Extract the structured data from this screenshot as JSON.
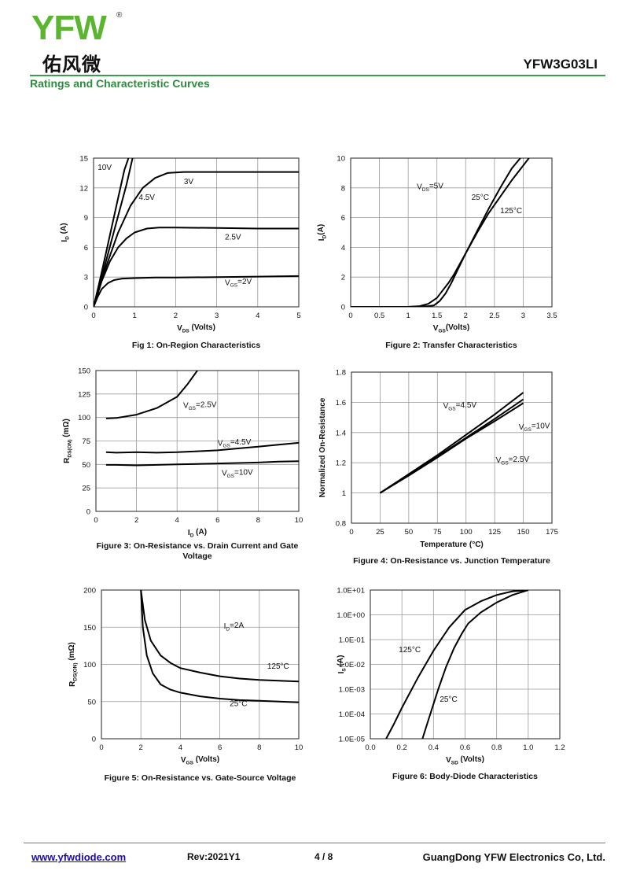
{
  "header": {
    "logo_text": "YFW",
    "logo_reg": "®",
    "logo_cn": "佑风微",
    "part_number": "YFW3G03LI",
    "section_title": "Ratings and Characteristic Curves"
  },
  "footer": {
    "website": "www.yfwdiode.com",
    "revision": "Rev:2021Y1",
    "page": "4 / 8",
    "company": "GuangDong YFW Electronics Co, Ltd."
  },
  "chart_data": [
    {
      "id": "fig1",
      "type": "line",
      "title": "Fig 1: On-Region Characteristics",
      "xlabel": "VDS (Volts)",
      "ylabel": "ID (A)",
      "xlim": [
        0,
        5
      ],
      "ylim": [
        0,
        15
      ],
      "xticks": [
        0,
        1,
        2,
        3,
        4,
        5
      ],
      "yticks": [
        0,
        3,
        6,
        9,
        12,
        15
      ],
      "xtick_labels": [
        "0",
        "1",
        "2",
        "3",
        "4",
        "5"
      ],
      "ytick_labels": [
        "0",
        "3",
        "6",
        "9",
        "12",
        "15"
      ],
      "series": [
        {
          "name": "10V",
          "x": [
            0,
            0.15,
            0.3,
            0.45,
            0.6,
            0.75,
            0.85
          ],
          "y": [
            0,
            2.6,
            5.4,
            8.2,
            11.0,
            13.8,
            15
          ]
        },
        {
          "name": "4.5V",
          "x": [
            0,
            0.2,
            0.4,
            0.6,
            0.8,
            0.95
          ],
          "y": [
            0,
            3.0,
            6.1,
            9.2,
            12.3,
            15
          ]
        },
        {
          "name": "3V",
          "x": [
            0,
            0.3,
            0.6,
            0.9,
            1.2,
            1.5,
            1.8,
            2.2,
            3,
            4,
            5
          ],
          "y": [
            0,
            4.0,
            7.5,
            10.2,
            12.0,
            13.0,
            13.5,
            13.6,
            13.6,
            13.6,
            13.6
          ]
        },
        {
          "name": "2.5V",
          "x": [
            0,
            0.2,
            0.4,
            0.6,
            0.8,
            1.0,
            1.3,
            1.6,
            2,
            3,
            4,
            5
          ],
          "y": [
            0,
            2.6,
            4.6,
            6.0,
            6.9,
            7.5,
            7.9,
            8.0,
            8.0,
            7.95,
            7.9,
            7.9
          ]
        },
        {
          "name": "VGS=2V",
          "x": [
            0,
            0.1,
            0.2,
            0.35,
            0.5,
            0.7,
            1.0,
            1.5,
            2,
            3,
            4,
            5
          ],
          "y": [
            0,
            1.0,
            1.8,
            2.4,
            2.7,
            2.85,
            2.9,
            2.95,
            2.95,
            3.0,
            3.05,
            3.1
          ]
        }
      ],
      "labels": [
        {
          "text": "10V",
          "x": 0.1,
          "y": 13.8
        },
        {
          "text": "4.5V",
          "x": 1.1,
          "y": 10.8
        },
        {
          "text": "3V",
          "x": 2.2,
          "y": 12.4
        },
        {
          "text": "2.5V",
          "x": 3.2,
          "y": 6.8
        },
        {
          "text": "VGS=2V",
          "x": 3.2,
          "y": 2.2
        }
      ]
    },
    {
      "id": "fig2",
      "type": "line",
      "title": "Figure 2: Transfer Characteristics",
      "xlabel": "VGS(Volts)",
      "ylabel": "ID(A)",
      "xlim": [
        0,
        3.5
      ],
      "ylim": [
        0,
        10
      ],
      "xticks": [
        0,
        0.5,
        1,
        1.5,
        2,
        2.5,
        3,
        3.5
      ],
      "yticks": [
        0,
        2,
        4,
        6,
        8,
        10
      ],
      "xtick_labels": [
        "0",
        "0.5",
        "1",
        "1.5",
        "2",
        "2.5",
        "3",
        "3.5"
      ],
      "ytick_labels": [
        "0",
        "2",
        "4",
        "6",
        "8",
        "10"
      ],
      "series": [
        {
          "name": "25°C",
          "x": [
            0,
            1.0,
            1.2,
            1.35,
            1.5,
            1.6,
            1.7,
            1.8,
            2.0,
            2.2,
            2.4,
            2.6,
            2.8,
            2.95
          ],
          "y": [
            0,
            0,
            0.05,
            0.2,
            0.6,
            1.1,
            1.6,
            2.2,
            3.6,
            5.1,
            6.6,
            8.0,
            9.3,
            10
          ]
        },
        {
          "name": "125°C",
          "x": [
            0,
            1.0,
            1.35,
            1.45,
            1.55,
            1.65,
            1.75,
            1.85,
            2.0,
            2.2,
            2.4,
            2.6,
            2.8,
            3.0,
            3.1
          ],
          "y": [
            0,
            0,
            0.05,
            0.1,
            0.4,
            0.9,
            1.6,
            2.4,
            3.6,
            5.0,
            6.3,
            7.4,
            8.5,
            9.5,
            10
          ]
        }
      ],
      "labels": [
        {
          "text": "VDS=5V",
          "x": 1.15,
          "y": 7.9
        },
        {
          "text": "25°C",
          "x": 2.1,
          "y": 7.2
        },
        {
          "text": "125°C",
          "x": 2.6,
          "y": 6.3
        }
      ]
    },
    {
      "id": "fig3",
      "type": "line",
      "title": "Figure 3: On-Resistance vs. Drain Current and Gate Voltage",
      "xlabel": "ID (A)",
      "ylabel": "RDS(ON) (mΩ)",
      "xlim": [
        0,
        10
      ],
      "ylim": [
        0,
        150
      ],
      "xticks": [
        0,
        2,
        4,
        6,
        8,
        10
      ],
      "yticks": [
        0,
        25,
        50,
        75,
        100,
        125,
        150
      ],
      "xtick_labels": [
        "0",
        "2",
        "4",
        "6",
        "8",
        "10"
      ],
      "ytick_labels": [
        "0",
        "25",
        "50",
        "75",
        "100",
        "125",
        "150"
      ],
      "series": [
        {
          "name": "VGS=2.5V",
          "x": [
            0.5,
            1,
            2,
            3,
            4,
            4.5,
            5
          ],
          "y": [
            99,
            99.5,
            103,
            110,
            122,
            135,
            150
          ]
        },
        {
          "name": "VGS=4.5V",
          "x": [
            0.5,
            1,
            2,
            3,
            4,
            5,
            6,
            7,
            8,
            9,
            10
          ],
          "y": [
            63,
            62.5,
            63,
            62.5,
            63,
            64,
            65,
            67,
            69,
            71,
            73
          ]
        },
        {
          "name": "VGS=10V",
          "x": [
            0.5,
            1,
            2,
            3,
            4,
            5,
            6,
            7,
            8,
            9,
            10
          ],
          "y": [
            49.5,
            49.5,
            49,
            49.5,
            50,
            50.5,
            51,
            51.5,
            52,
            53,
            53.5
          ]
        }
      ],
      "labels": [
        {
          "text": "VGS=2.5V",
          "x": 4.3,
          "y": 110
        },
        {
          "text": "VGS=4.5V",
          "x": 6.0,
          "y": 70
        },
        {
          "text": "VGS=10V",
          "x": 6.2,
          "y": 38
        }
      ]
    },
    {
      "id": "fig4",
      "type": "line",
      "title": "Figure 4: On-Resistance vs. Junction Temperature",
      "xlabel": "Temperature (°C)",
      "ylabel": "Normalized On-Resistance",
      "xlim": [
        0,
        175
      ],
      "ylim": [
        0.8,
        1.8
      ],
      "xticks": [
        0,
        25,
        50,
        75,
        100,
        125,
        150,
        175
      ],
      "yticks": [
        0.8,
        1,
        1.2,
        1.4,
        1.6,
        1.8
      ],
      "xtick_labels": [
        "0",
        "25",
        "50",
        "75",
        "100",
        "125",
        "150",
        "175"
      ],
      "ytick_labels": [
        "0.8",
        "1",
        "1.2",
        "1.4",
        "1.6",
        "1.8"
      ],
      "series": [
        {
          "name": "VGS=4.5V",
          "x": [
            25,
            50,
            75,
            100,
            125,
            150
          ],
          "y": [
            1.0,
            1.125,
            1.25,
            1.385,
            1.52,
            1.665
          ]
        },
        {
          "name": "VGS=10V",
          "x": [
            25,
            50,
            75,
            100,
            125,
            150
          ],
          "y": [
            1.0,
            1.12,
            1.24,
            1.365,
            1.49,
            1.62
          ]
        },
        {
          "name": "VGS=2.5V",
          "x": [
            25,
            50,
            75,
            100,
            125,
            150
          ],
          "y": [
            1.0,
            1.115,
            1.235,
            1.36,
            1.475,
            1.595
          ]
        }
      ],
      "labels": [
        {
          "text": "VGS=4.5V",
          "x": 80,
          "y": 1.56
        },
        {
          "text": "VGS=10V",
          "x": 146,
          "y": 1.42
        },
        {
          "text": "VGS=2.5V",
          "x": 126,
          "y": 1.2
        }
      ]
    },
    {
      "id": "fig5",
      "type": "line",
      "title": "Figure 5: On-Resistance vs. Gate-Source Voltage",
      "xlabel": "VGS (Volts)",
      "ylabel": "RDS(ON) (mΩ)",
      "xlim": [
        0,
        10
      ],
      "ylim": [
        0,
        200
      ],
      "xticks": [
        0,
        2,
        4,
        6,
        8,
        10
      ],
      "yticks": [
        0,
        50,
        100,
        150,
        200
      ],
      "xtick_labels": [
        "0",
        "2",
        "4",
        "6",
        "8",
        "10"
      ],
      "ytick_labels": [
        "0",
        "50",
        "100",
        "150",
        "200"
      ],
      "series": [
        {
          "name": "125°C",
          "x": [
            2.0,
            2.2,
            2.5,
            3,
            3.5,
            4,
            5,
            6,
            7,
            8,
            9,
            10
          ],
          "y": [
            200,
            160,
            132,
            112,
            102,
            95,
            89,
            84,
            81,
            79,
            78,
            77
          ]
        },
        {
          "name": "25°C",
          "x": [
            2.0,
            2.1,
            2.3,
            2.6,
            3,
            3.5,
            4,
            5,
            6,
            7,
            8,
            9,
            10
          ],
          "y": [
            200,
            150,
            112,
            88,
            73,
            66,
            62,
            57,
            54,
            52,
            51,
            50,
            49
          ]
        }
      ],
      "labels": [
        {
          "text": "ID=2A",
          "x": 6.2,
          "y": 148
        },
        {
          "text": "125°C",
          "x": 8.4,
          "y": 94
        },
        {
          "text": "25°C",
          "x": 6.5,
          "y": 44
        }
      ]
    },
    {
      "id": "fig6",
      "type": "line",
      "title": "Figure 6: Body-Diode Characteristics",
      "xlabel": "VSD (Volts)",
      "ylabel": "IS (A)",
      "yscale": "log",
      "xlim": [
        0,
        1.2
      ],
      "ylim_exp": [
        -5,
        1
      ],
      "xticks": [
        0,
        0.2,
        0.4,
        0.6,
        0.8,
        1.0,
        1.2
      ],
      "ytick_exps": [
        -5,
        -4,
        -3,
        -2,
        -1,
        0,
        1
      ],
      "xtick_labels": [
        "0.0",
        "0.2",
        "0.4",
        "0.6",
        "0.8",
        "1.0",
        "1.2"
      ],
      "ytick_labels": [
        "1.0E-05",
        "1.0E-04",
        "1.0E-03",
        "1.0E-02",
        "1.0E-01",
        "1.0E+00",
        "1.0E+01"
      ],
      "series": [
        {
          "name": "125°C",
          "x": [
            0.1,
            0.15,
            0.2,
            0.3,
            0.4,
            0.5,
            0.6,
            0.7,
            0.8,
            0.9,
            1.0
          ],
          "y_exp": [
            -5,
            -4.4,
            -3.75,
            -2.55,
            -1.45,
            -0.5,
            0.2,
            0.55,
            0.8,
            0.95,
            1.0
          ]
        },
        {
          "name": "25°C",
          "x": [
            0.33,
            0.38,
            0.43,
            0.48,
            0.53,
            0.58,
            0.62,
            0.7,
            0.8,
            0.9,
            1.0
          ],
          "y_exp": [
            -5,
            -4.0,
            -3.0,
            -2.1,
            -1.35,
            -0.75,
            -0.35,
            0.1,
            0.5,
            0.8,
            1.0
          ]
        }
      ],
      "labels": [
        {
          "text": "125°C",
          "x": 0.18,
          "y_exp": -1.5
        },
        {
          "text": "25°C",
          "x": 0.44,
          "y_exp": -3.5
        }
      ]
    }
  ]
}
